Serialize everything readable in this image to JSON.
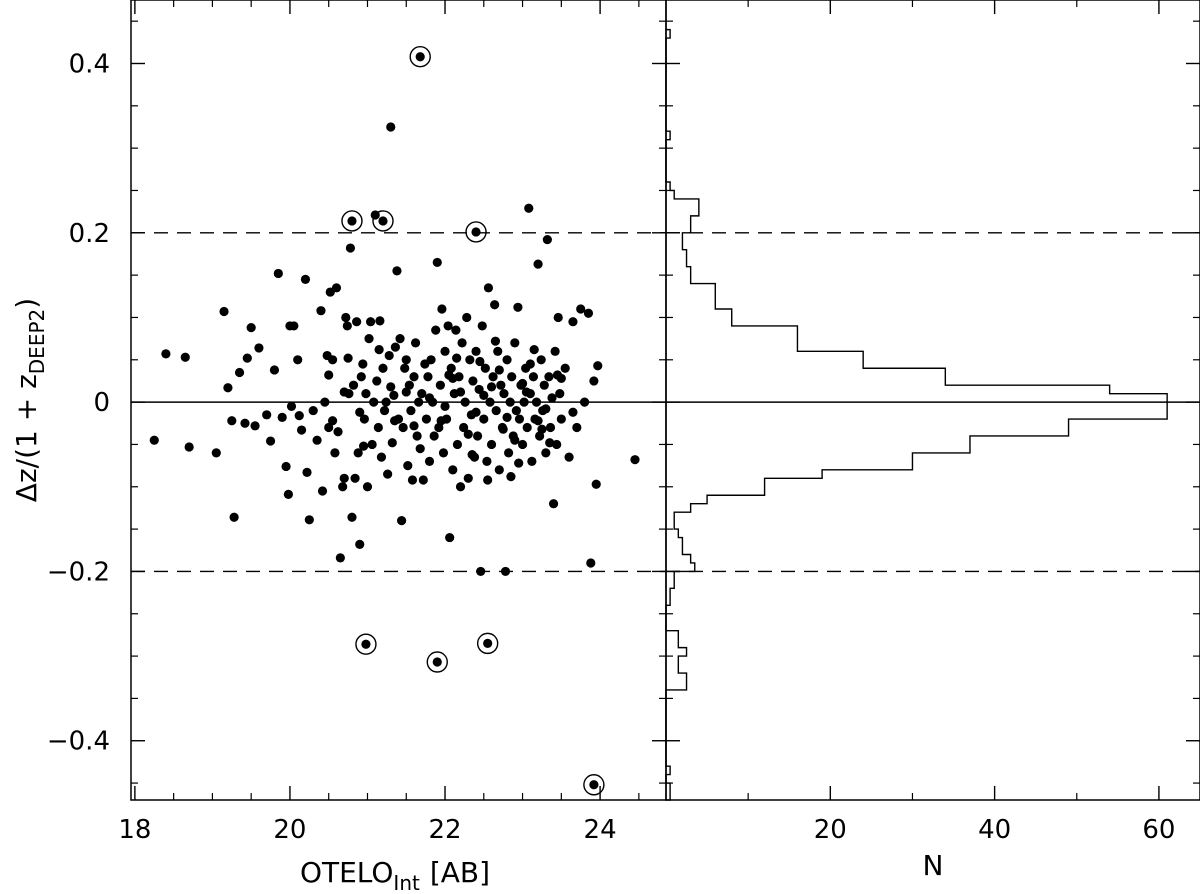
{
  "chart_data": [
    {
      "type": "scatter",
      "xlabel": "OTELO",
      "xlabel_sub": "Int",
      "xlabel_suffix": "[AB]",
      "ylabel": "Δz/(1 + z",
      "ylabel_sub": "DEEP2",
      "ylabel_suffix": ")",
      "xlim": [
        17.95,
        24.85
      ],
      "ylim": [
        -0.47,
        0.475
      ],
      "x_ticks": [
        18,
        20,
        22,
        24
      ],
      "x_tick_labels": [
        "18",
        "20",
        "22",
        "24"
      ],
      "y_ticks": [
        -0.4,
        -0.2,
        0,
        0.2,
        0.4
      ],
      "y_tick_labels": [
        "−0.4",
        "−0.2",
        "0",
        "0.2",
        "0.4"
      ],
      "reference_lines": [
        {
          "y": 0,
          "style": "solid"
        },
        {
          "y": 0.2,
          "style": "dashed"
        },
        {
          "y": -0.2,
          "style": "dashed"
        }
      ],
      "grid": false,
      "points": [
        [
          18.25,
          -0.045
        ],
        [
          18.4,
          0.057
        ],
        [
          18.65,
          0.053
        ],
        [
          18.7,
          -0.053
        ],
        [
          19.05,
          -0.06
        ],
        [
          19.15,
          0.107
        ],
        [
          19.2,
          0.017
        ],
        [
          19.25,
          -0.022
        ],
        [
          19.28,
          -0.136
        ],
        [
          19.35,
          0.035
        ],
        [
          19.42,
          -0.025
        ],
        [
          19.45,
          0.052
        ],
        [
          19.5,
          0.088
        ],
        [
          19.55,
          -0.028
        ],
        [
          19.6,
          0.064
        ],
        [
          19.7,
          -0.015
        ],
        [
          19.75,
          -0.046
        ],
        [
          19.8,
          0.038
        ],
        [
          19.85,
          0.152
        ],
        [
          19.9,
          -0.018
        ],
        [
          19.95,
          -0.076
        ],
        [
          19.98,
          -0.109
        ],
        [
          20.0,
          0.09
        ],
        [
          20.02,
          -0.005
        ],
        [
          20.05,
          0.09
        ],
        [
          20.1,
          0.05
        ],
        [
          20.12,
          -0.016
        ],
        [
          20.15,
          -0.033
        ],
        [
          20.2,
          0.145
        ],
        [
          20.22,
          -0.083
        ],
        [
          20.25,
          -0.139
        ],
        [
          20.3,
          -0.01
        ],
        [
          20.35,
          -0.045
        ],
        [
          20.4,
          0.108
        ],
        [
          20.42,
          -0.105
        ],
        [
          20.45,
          0.0
        ],
        [
          20.48,
          0.055
        ],
        [
          20.5,
          -0.03
        ],
        [
          20.52,
          0.13
        ],
        [
          20.55,
          0.05
        ],
        [
          20.58,
          -0.06
        ],
        [
          20.6,
          0.135
        ],
        [
          20.62,
          -0.035
        ],
        [
          20.65,
          -0.184
        ],
        [
          20.68,
          -0.1
        ],
        [
          20.7,
          -0.09
        ],
        [
          20.72,
          0.1
        ],
        [
          20.74,
          0.09
        ],
        [
          20.76,
          0.01
        ],
        [
          20.78,
          0.182
        ],
        [
          20.8,
          -0.136
        ],
        [
          20.82,
          0.02
        ],
        [
          20.84,
          -0.09
        ],
        [
          20.86,
          0.095
        ],
        [
          20.88,
          -0.06
        ],
        [
          20.9,
          -0.168
        ],
        [
          20.92,
          0.03
        ],
        [
          20.94,
          0.045
        ],
        [
          20.96,
          -0.02
        ],
        [
          20.98,
          0.01
        ],
        [
          21.0,
          -0.1
        ],
        [
          21.02,
          0.075
        ],
        [
          21.04,
          0.095
        ],
        [
          21.06,
          -0.05
        ],
        [
          21.08,
          0.0
        ],
        [
          21.1,
          0.221
        ],
        [
          21.12,
          0.025
        ],
        [
          21.14,
          -0.03
        ],
        [
          21.16,
          0.096
        ],
        [
          21.18,
          -0.065
        ],
        [
          21.2,
          0.04
        ],
        [
          21.22,
          -0.01
        ],
        [
          21.24,
          0.0
        ],
        [
          21.26,
          -0.085
        ],
        [
          21.28,
          0.055
        ],
        [
          21.3,
          0.325
        ],
        [
          21.32,
          -0.048
        ],
        [
          21.34,
          0.008
        ],
        [
          21.36,
          0.065
        ],
        [
          21.38,
          0.155
        ],
        [
          21.4,
          -0.02
        ],
        [
          21.42,
          0.075
        ],
        [
          21.44,
          -0.14
        ],
        [
          21.46,
          -0.03
        ],
        [
          21.48,
          0.04
        ],
        [
          21.5,
          0.05
        ],
        [
          21.52,
          -0.075
        ],
        [
          21.54,
          0.02
        ],
        [
          21.56,
          -0.01
        ],
        [
          21.58,
          -0.092
        ],
        [
          21.6,
          0.03
        ],
        [
          21.62,
          0.07
        ],
        [
          21.64,
          -0.04
        ],
        [
          21.66,
          0.0
        ],
        [
          21.68,
          -0.055
        ],
        [
          21.7,
          0.01
        ],
        [
          21.72,
          -0.092
        ],
        [
          21.74,
          0.045
        ],
        [
          21.76,
          -0.02
        ],
        [
          21.78,
          0.03
        ],
        [
          21.8,
          -0.07
        ],
        [
          21.82,
          0.05
        ],
        [
          21.84,
          0.0
        ],
        [
          21.86,
          -0.04
        ],
        [
          21.88,
          0.085
        ],
        [
          21.9,
          0.165
        ],
        [
          21.92,
          -0.03
        ],
        [
          21.94,
          0.02
        ],
        [
          21.96,
          0.11
        ],
        [
          21.98,
          -0.06
        ],
        [
          22.0,
          0.06
        ],
        [
          22.02,
          -0.02
        ],
        [
          22.04,
          0.09
        ],
        [
          22.06,
          -0.16
        ],
        [
          22.08,
          0.04
        ],
        [
          22.1,
          -0.08
        ],
        [
          22.12,
          0.01
        ],
        [
          22.14,
          0.085
        ],
        [
          22.16,
          -0.05
        ],
        [
          22.18,
          0.03
        ],
        [
          22.2,
          -0.1
        ],
        [
          22.22,
          0.07
        ],
        [
          22.24,
          -0.03
        ],
        [
          22.26,
          0.0
        ],
        [
          22.28,
          0.1
        ],
        [
          22.3,
          -0.09
        ],
        [
          22.32,
          0.05
        ],
        [
          22.34,
          -0.015
        ],
        [
          22.36,
          0.025
        ],
        [
          22.38,
          -0.065
        ],
        [
          22.4,
          0.06
        ],
        [
          22.42,
          -0.04
        ],
        [
          22.44,
          0.015
        ],
        [
          22.46,
          -0.2
        ],
        [
          22.48,
          0.09
        ],
        [
          22.5,
          -0.02
        ],
        [
          22.52,
          0.04
        ],
        [
          22.54,
          -0.07
        ],
        [
          22.56,
          0.135
        ],
        [
          22.58,
          0.0
        ],
        [
          22.6,
          -0.05
        ],
        [
          22.62,
          0.03
        ],
        [
          22.64,
          0.115
        ],
        [
          22.66,
          -0.01
        ],
        [
          22.68,
          0.06
        ],
        [
          22.7,
          -0.08
        ],
        [
          22.72,
          0.02
        ],
        [
          22.74,
          -0.03
        ],
        [
          22.76,
          0.01
        ],
        [
          22.78,
          -0.2
        ],
        [
          22.8,
          0.05
        ],
        [
          22.82,
          -0.06
        ],
        [
          22.84,
          0.0
        ],
        [
          22.86,
          0.03
        ],
        [
          22.88,
          -0.04
        ],
        [
          22.9,
          0.07
        ],
        [
          22.92,
          -0.01
        ],
        [
          22.94,
          0.112
        ],
        [
          22.96,
          -0.02
        ],
        [
          22.98,
          0.02
        ],
        [
          23.0,
          -0.05
        ],
        [
          23.02,
          0.0
        ],
        [
          23.04,
          0.04
        ],
        [
          23.06,
          -0.03
        ],
        [
          23.08,
          0.229
        ],
        [
          23.1,
          0.01
        ],
        [
          23.12,
          -0.07
        ],
        [
          23.14,
          0.03
        ],
        [
          23.16,
          -0.02
        ],
        [
          23.18,
          0.0
        ],
        [
          23.2,
          0.163
        ],
        [
          23.22,
          -0.04
        ],
        [
          23.24,
          0.05
        ],
        [
          23.26,
          -0.01
        ],
        [
          23.28,
          0.02
        ],
        [
          23.3,
          -0.06
        ],
        [
          23.32,
          0.192
        ],
        [
          23.34,
          0.03
        ],
        [
          23.36,
          -0.03
        ],
        [
          23.38,
          0.005
        ],
        [
          23.4,
          -0.12
        ],
        [
          23.42,
          0.06
        ],
        [
          23.44,
          -0.05
        ],
        [
          23.46,
          0.1
        ],
        [
          23.48,
          0.01
        ],
        [
          23.5,
          -0.02
        ],
        [
          23.55,
          0.04
        ],
        [
          23.6,
          -0.065
        ],
        [
          23.65,
          0.095
        ],
        [
          23.7,
          -0.03
        ],
        [
          23.75,
          0.11
        ],
        [
          23.8,
          0.0
        ],
        [
          23.85,
          0.105
        ],
        [
          23.88,
          -0.19
        ],
        [
          23.92,
          0.025
        ],
        [
          23.95,
          -0.097
        ],
        [
          23.97,
          0.043
        ],
        [
          24.45,
          -0.068
        ],
        [
          21.8,
          0.005
        ],
        [
          22.0,
          -0.005
        ],
        [
          22.2,
          0.012
        ],
        [
          22.4,
          -0.012
        ],
        [
          22.6,
          0.018
        ],
        [
          22.8,
          -0.018
        ],
        [
          23.0,
          0.022
        ],
        [
          23.2,
          -0.022
        ],
        [
          21.6,
          -0.028
        ],
        [
          22.1,
          0.028
        ],
        [
          22.3,
          -0.038
        ],
        [
          22.7,
          0.038
        ],
        [
          22.9,
          -0.045
        ],
        [
          23.1,
          0.045
        ],
        [
          21.5,
          0.012
        ],
        [
          23.3,
          -0.008
        ],
        [
          21.3,
          0.018
        ],
        [
          23.5,
          0.028
        ],
        [
          20.9,
          -0.012
        ],
        [
          20.7,
          0.012
        ],
        [
          20.5,
          0.032
        ],
        [
          22.5,
          0.008
        ],
        [
          22.85,
          -0.088
        ],
        [
          22.15,
          0.052
        ],
        [
          22.35,
          -0.062
        ],
        [
          22.65,
          0.072
        ],
        [
          22.95,
          -0.072
        ],
        [
          23.15,
          0.062
        ],
        [
          23.35,
          -0.048
        ],
        [
          22.55,
          -0.092
        ],
        [
          22.05,
          0.032
        ],
        [
          21.95,
          -0.022
        ],
        [
          22.45,
          0.048
        ],
        [
          22.75,
          -0.032
        ],
        [
          23.05,
          0.012
        ],
        [
          23.25,
          -0.032
        ],
        [
          23.45,
          0.032
        ],
        [
          23.65,
          -0.012
        ],
        [
          21.35,
          -0.022
        ],
        [
          21.15,
          0.062
        ],
        [
          20.95,
          -0.052
        ],
        [
          20.75,
          0.052
        ],
        [
          20.55,
          -0.022
        ]
      ],
      "highlighted_points": [
        [
          21.68,
          0.408
        ],
        [
          20.8,
          0.214
        ],
        [
          21.2,
          0.214
        ],
        [
          22.4,
          0.201
        ],
        [
          20.98,
          -0.286
        ],
        [
          22.55,
          -0.285
        ],
        [
          21.9,
          -0.307
        ],
        [
          23.92,
          -0.452
        ]
      ]
    },
    {
      "type": "histogram",
      "orientation": "horizontal",
      "xlabel": "N",
      "xlim": [
        0,
        65
      ],
      "ylim": [
        -0.47,
        0.475
      ],
      "x_ticks": [
        20,
        40,
        60
      ],
      "x_tick_labels": [
        "20",
        "40",
        "60"
      ],
      "y_ticks": [
        -0.4,
        -0.2,
        0,
        0.2,
        0.4
      ],
      "reference_lines": [
        {
          "y": 0,
          "style": "solid"
        },
        {
          "y": 0.2,
          "style": "dashed"
        },
        {
          "y": -0.2,
          "style": "dashed"
        }
      ],
      "bin_edges": [
        -0.47,
        -0.45,
        -0.44,
        -0.43,
        -0.42,
        -0.34,
        -0.32,
        -0.3,
        -0.29,
        -0.28,
        -0.27,
        -0.24,
        -0.22,
        -0.2,
        -0.19,
        -0.18,
        -0.17,
        -0.16,
        -0.15,
        -0.13,
        -0.12,
        -0.11,
        -0.09,
        -0.08,
        -0.06,
        -0.04,
        -0.02,
        0.0,
        0.01,
        0.02,
        0.04,
        0.06,
        0.09,
        0.11,
        0.14,
        0.16,
        0.18,
        0.2,
        0.22,
        0.23,
        0.24,
        0.25,
        0.26,
        0.31,
        0.32,
        0.43,
        0.44
      ],
      "counts": [
        0.5,
        0,
        0.5,
        0,
        0,
        2.5,
        1.5,
        2.5,
        1.5,
        1.5,
        0,
        0.5,
        1,
        3.5,
        3,
        2,
        2,
        1.5,
        1,
        3,
        5,
        12,
        19,
        30,
        37,
        49,
        61,
        61,
        54,
        34,
        24,
        16,
        8,
        6,
        3,
        2.5,
        2,
        3,
        4,
        4,
        1,
        0.5,
        0,
        0.5,
        0,
        0.5,
        0
      ]
    }
  ]
}
